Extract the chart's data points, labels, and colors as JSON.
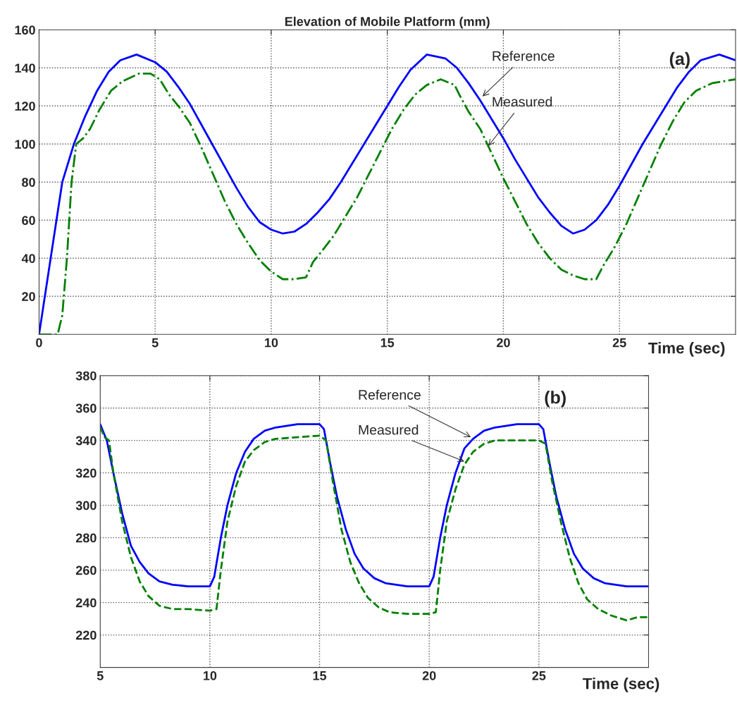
{
  "chart_data": [
    {
      "type": "line",
      "title": "Elevation of Mobile Platform (mm)",
      "xlabel": "Time (sec)",
      "xlim": [
        0,
        30
      ],
      "ylim": [
        0,
        160
      ],
      "xticks": [
        0,
        5,
        10,
        15,
        20,
        25
      ],
      "yticks": [
        20,
        40,
        60,
        80,
        100,
        120,
        140,
        160
      ],
      "grid": true,
      "annotations": [
        {
          "text": "Reference",
          "x": 19.1,
          "y": 125
        },
        {
          "text": "Measured",
          "x": 19.35,
          "y": 99
        },
        "(a)"
      ],
      "series": [
        {
          "color": "#0000ff",
          "line_style": "solid",
          "x": [
            0,
            0.5,
            1,
            1.5,
            2,
            2.5,
            3,
            3.5,
            4.2,
            5,
            5.5,
            6,
            6.5,
            7,
            7.5,
            8,
            8.5,
            9,
            9.5,
            10,
            10.5,
            11,
            11.5,
            12,
            12.5,
            13,
            13.5,
            14,
            14.5,
            15,
            15.5,
            16,
            16.7,
            17.5,
            18,
            18.5,
            19,
            19.5,
            20,
            20.5,
            21,
            21.5,
            22,
            22.5,
            23,
            23.5,
            24,
            24.5,
            25,
            25.5,
            26,
            26.5,
            27,
            27.5,
            28,
            28.5,
            29.3,
            30
          ],
          "values": [
            0,
            40,
            80,
            100,
            115,
            128,
            138,
            144,
            147,
            143,
            138,
            130,
            121,
            110,
            99,
            88,
            77,
            67,
            59,
            55,
            53,
            54,
            58,
            64,
            71,
            80,
            90,
            100,
            110,
            120,
            130,
            139,
            147,
            145,
            140,
            132,
            123,
            113,
            103,
            92,
            82,
            72,
            64,
            57,
            53,
            55,
            60,
            68,
            78,
            89,
            100,
            110,
            120,
            130,
            138,
            144,
            147,
            144
          ]
        },
        {
          "color": "#008000",
          "line_style": "dashdot",
          "x": [
            0,
            0.8,
            1.0,
            1.2,
            1.4,
            1.6,
            1.9,
            2.2,
            2.6,
            3.1,
            3.6,
            4.3,
            4.8,
            5.2,
            5.6,
            6.0,
            6.5,
            7,
            7.5,
            8,
            8.5,
            9,
            9.5,
            10,
            10.5,
            11,
            11.5,
            11.8,
            12.2,
            12.7,
            13.2,
            13.7,
            14.2,
            14.7,
            15.2,
            15.7,
            16.2,
            16.7,
            17.3,
            17.9,
            18.1,
            18.5,
            19,
            19.5,
            20,
            20.5,
            21,
            21.5,
            22,
            22.5,
            23,
            23.5,
            24,
            24.3,
            24.8,
            25.3,
            25.8,
            26.3,
            26.8,
            27.3,
            27.8,
            28.3,
            29,
            30
          ],
          "values": [
            0,
            0,
            10,
            40,
            80,
            100,
            103,
            108,
            118,
            128,
            133,
            137,
            137,
            134,
            126,
            120,
            111,
            98,
            84,
            70,
            58,
            48,
            39,
            33,
            29,
            29,
            30,
            38,
            44,
            52,
            62,
            72,
            84,
            96,
            108,
            118,
            126,
            131,
            134,
            131,
            126,
            117,
            108,
            95,
            82,
            70,
            58,
            48,
            40,
            34,
            31,
            29,
            29,
            36,
            46,
            58,
            72,
            86,
            100,
            112,
            122,
            128,
            132,
            134
          ]
        }
      ]
    },
    {
      "type": "line",
      "xlabel": "Time (sec)",
      "xlim": [
        5,
        30
      ],
      "ylim": [
        200,
        380
      ],
      "xticks": [
        5,
        10,
        15,
        20,
        25
      ],
      "yticks": [
        220,
        240,
        260,
        280,
        300,
        320,
        340,
        360,
        380
      ],
      "grid": true,
      "annotations": [
        {
          "text": "Reference",
          "x": 21.9,
          "y": 342
        },
        {
          "text": "Measured",
          "x": 21.6,
          "y": 327
        },
        "(b)"
      ],
      "series": [
        {
          "color": "#0000ff",
          "line_style": "solid",
          "x": [
            5,
            5.3,
            5.6,
            6,
            6.4,
            6.8,
            7.2,
            7.7,
            8.3,
            9,
            10,
            10.2,
            10.5,
            10.8,
            11.2,
            11.6,
            12,
            12.5,
            13,
            14,
            15,
            15.2,
            15.5,
            15.8,
            16.2,
            16.6,
            17,
            17.5,
            18,
            19,
            20,
            20.2,
            20.5,
            20.8,
            21.2,
            21.6,
            22,
            22.5,
            23,
            24,
            25,
            25.2,
            25.5,
            25.8,
            26.2,
            26.6,
            27,
            27.5,
            28,
            29,
            30
          ],
          "values": [
            350,
            340,
            320,
            295,
            275,
            265,
            258,
            253,
            251,
            250,
            250,
            256,
            280,
            300,
            320,
            333,
            341,
            346,
            348,
            350,
            350,
            347,
            325,
            305,
            285,
            270,
            261,
            255,
            252,
            250,
            250,
            256,
            280,
            300,
            320,
            335,
            341,
            346,
            348,
            350,
            350,
            347,
            325,
            305,
            285,
            270,
            261,
            255,
            252,
            250,
            250
          ]
        },
        {
          "color": "#008000",
          "line_style": "dashed",
          "x": [
            5,
            5.2,
            5.4,
            5.6,
            6,
            6.4,
            6.8,
            7.2,
            7.7,
            8.3,
            9,
            10,
            10.3,
            10.5,
            10.8,
            11.2,
            11.6,
            12,
            12.5,
            13,
            14,
            15,
            15.3,
            15.6,
            16,
            16.4,
            16.8,
            17.2,
            17.7,
            18.2,
            19,
            20,
            20.3,
            20.5,
            20.8,
            21.2,
            21.6,
            22,
            22.5,
            23,
            24,
            25,
            25.3,
            25.6,
            26,
            26.4,
            26.8,
            27.2,
            27.7,
            28.3,
            29,
            29.5,
            30
          ],
          "values": [
            348,
            342,
            340,
            320,
            290,
            268,
            253,
            244,
            238,
            236,
            236,
            235,
            236,
            260,
            290,
            312,
            327,
            334,
            339,
            341,
            342,
            343,
            340,
            315,
            285,
            265,
            252,
            243,
            237,
            234,
            233,
            233,
            234,
            260,
            290,
            310,
            325,
            333,
            338,
            340,
            340,
            340,
            338,
            315,
            290,
            268,
            252,
            242,
            236,
            232,
            229,
            231,
            231
          ]
        }
      ]
    }
  ]
}
